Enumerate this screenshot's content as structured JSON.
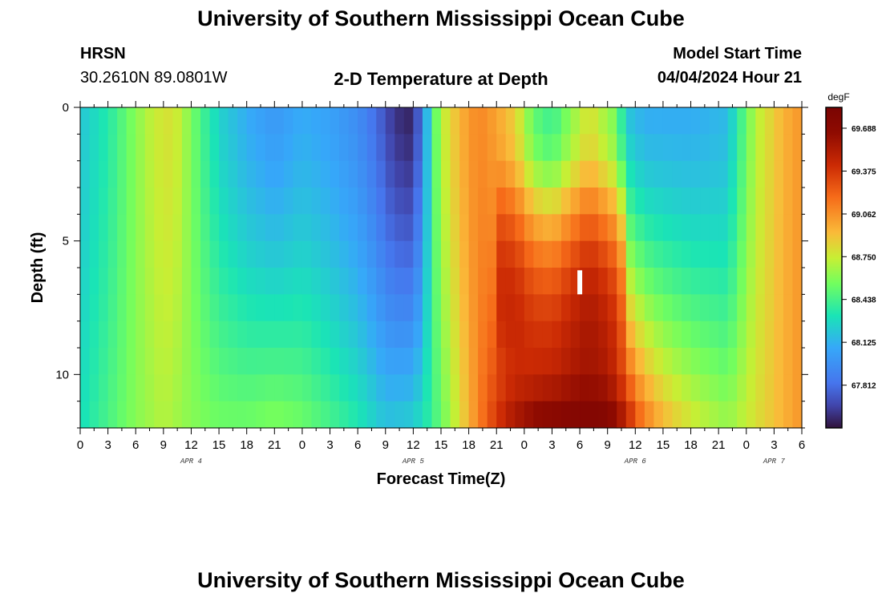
{
  "page": {
    "title_top": "University of Southern Mississippi Ocean Cube",
    "title_bottom": "University of Southern Mississippi Ocean Cube",
    "station": "HRSN",
    "coords": "30.2610N  89.0801W",
    "plot_title": "2-D Temperature at Depth",
    "model_start_label": "Model Start Time",
    "model_start_value": "04/04/2024 Hour 21"
  },
  "chart_data": {
    "type": "heatmap",
    "title": "2-D Temperature at Depth",
    "xlabel": "Forecast Time(Z)",
    "ylabel": "Depth (ft)",
    "x_range_hours": [
      0,
      78
    ],
    "ylim": [
      0,
      12
    ],
    "y_inverted": true,
    "x_ticks": [
      {
        "h": 0,
        "label": "0"
      },
      {
        "h": 3,
        "label": "3"
      },
      {
        "h": 6,
        "label": "6"
      },
      {
        "h": 9,
        "label": "9"
      },
      {
        "h": 12,
        "label": "12"
      },
      {
        "h": 15,
        "label": "15"
      },
      {
        "h": 18,
        "label": "18"
      },
      {
        "h": 21,
        "label": "21"
      },
      {
        "h": 24,
        "label": "0"
      },
      {
        "h": 27,
        "label": "3"
      },
      {
        "h": 30,
        "label": "6"
      },
      {
        "h": 33,
        "label": "9"
      },
      {
        "h": 36,
        "label": "12"
      },
      {
        "h": 39,
        "label": "15"
      },
      {
        "h": 42,
        "label": "18"
      },
      {
        "h": 45,
        "label": "21"
      },
      {
        "h": 48,
        "label": "0"
      },
      {
        "h": 51,
        "label": "3"
      },
      {
        "h": 54,
        "label": "6"
      },
      {
        "h": 57,
        "label": "9"
      },
      {
        "h": 60,
        "label": "12"
      },
      {
        "h": 63,
        "label": "15"
      },
      {
        "h": 66,
        "label": "18"
      },
      {
        "h": 69,
        "label": "21"
      },
      {
        "h": 72,
        "label": "0"
      },
      {
        "h": 75,
        "label": "3"
      },
      {
        "h": 78,
        "label": "6"
      }
    ],
    "date_labels": [
      {
        "h": 12,
        "label": "APR 4"
      },
      {
        "h": 36,
        "label": "APR 5"
      },
      {
        "h": 60,
        "label": "APR 6"
      },
      {
        "h": 75,
        "label": "APR 7"
      }
    ],
    "y_ticks": [
      {
        "v": 0,
        "label": "0"
      },
      {
        "v": 5,
        "label": "5"
      },
      {
        "v": 10,
        "label": "10"
      }
    ],
    "depth_levels": [
      0.5,
      1.5,
      2.5,
      3.5,
      4.5,
      5.5,
      6.5,
      7.5,
      8.5,
      9.5,
      10.5,
      11.5
    ],
    "colorbar": {
      "unit": "degF",
      "min": 67.5,
      "max": 69.84,
      "tick_values": [
        69.688,
        69.375,
        69.062,
        68.75,
        68.438,
        68.125,
        67.812
      ],
      "tick_labels": [
        "69.688",
        "69.375",
        "69.062",
        "68.750",
        "68.438",
        "68.125",
        "67.812"
      ]
    },
    "marker": {
      "hour": 54,
      "depth": 7
    }
  }
}
